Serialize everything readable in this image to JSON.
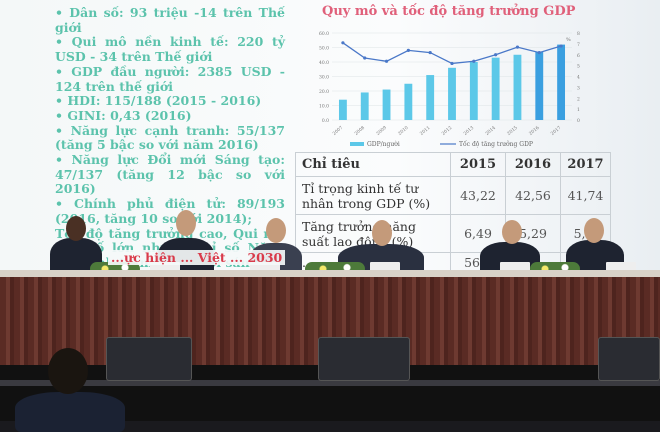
{
  "slide": {
    "bullets": [
      "• Dân số: 93 triệu -14 trên Thế giới",
      "• Qui mô nền kinh tế: 220 tỷ USD - 34 trên Thế giới",
      "• GDP đầu người: 2385 USD - 124 trên thế giới",
      "• HDI: 115/188 (2015 - 2016)",
      "• GINI: 0,43 (2016)",
      "• Năng lực cạnh tranh: 55/137 (tăng 5 bậc so với năm 2016)",
      "• Năng lực Đổi mới Sáng tạo: 47/137 (tăng 12 bậc so với 2016)",
      "• Chính phủ điện tử: 89/193 (2016, tăng 10 so với 2014);",
      "Tốc độ tăng trưởng cao, Qui mô dân số lớn nhưng chỉ số Năng lực cạnh tranh, Đổi mới sáng tạo thấp"
    ],
    "red_text": "...ực hiện ... Việt ... 2030"
  },
  "chart_data": {
    "type": "bar+line",
    "title": "Quy mô và tốc độ tăng trưởng GDP",
    "categories": [
      "2007",
      "2008",
      "2009",
      "2010",
      "2011",
      "2012",
      "2013",
      "2014",
      "2015",
      "2016",
      "2017"
    ],
    "series": [
      {
        "name": "GDP/người",
        "type": "bar",
        "axis": "left",
        "values": [
          14,
          19,
          21,
          25,
          31,
          36,
          40,
          43,
          45,
          47,
          52
        ]
      },
      {
        "name": "Tốc độ tăng trưởng GDP",
        "type": "line",
        "axis": "right",
        "values": [
          7.1,
          5.7,
          5.4,
          6.4,
          6.2,
          5.2,
          5.4,
          6.0,
          6.7,
          6.2,
          6.8
        ]
      }
    ],
    "ylim_left": [
      0,
      60
    ],
    "yticks_left": [
      "0.0",
      "10.0",
      "20.0",
      "30.0",
      "40.0",
      "50.0",
      "60.0"
    ],
    "ylim_right": [
      0,
      8
    ],
    "yticks_right": [
      "0",
      "1",
      "2",
      "3",
      "4",
      "5",
      "6",
      "7",
      "8"
    ],
    "right_unit": "%",
    "legend": "bottom",
    "grid": true,
    "colors": {
      "bar": "#5cc8e8",
      "bar_highlight": "#3a9fe0",
      "line": "#4a78c8"
    }
  },
  "table": {
    "headers": [
      "Chỉ tiêu",
      "2015",
      "2016",
      "2017"
    ],
    "rows": [
      [
        "Tỉ trọng kinh tế tư nhân trong GDP (%)",
        "43,22",
        "42,56",
        "41,74"
      ],
      [
        "Tăng trưởng năng suất lao động (%)",
        "6,49",
        "5,29",
        "5,..."
      ],
      [
        "...",
        "56...",
        "",
        ""
      ]
    ]
  }
}
